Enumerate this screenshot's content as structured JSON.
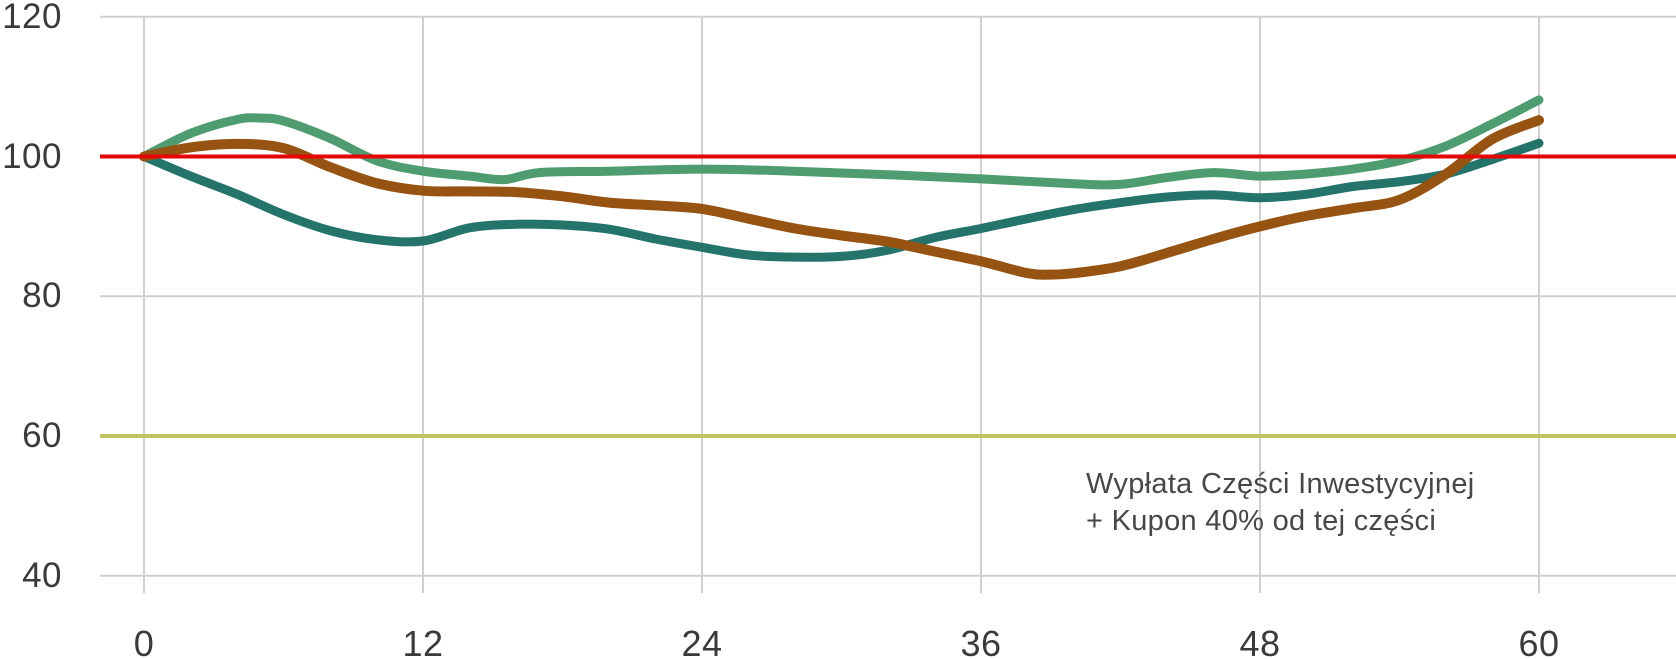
{
  "chart_data": {
    "type": "line",
    "title": "",
    "xlabel": "",
    "ylabel": "",
    "grid": true,
    "legend": "none",
    "x_axis": {
      "tick_labels": [
        "0",
        "12",
        "24",
        "36",
        "48",
        "60"
      ],
      "tick_values": [
        0,
        12,
        24,
        36,
        48,
        60
      ],
      "range_shown": [
        0,
        66
      ]
    },
    "y_axis": {
      "tick_labels": [
        "120",
        "100",
        "80",
        "60",
        "40"
      ],
      "tick_values": [
        120,
        100,
        80,
        60,
        40
      ],
      "plain_grid_values": [
        120,
        80,
        40
      ],
      "range_shown": [
        33,
        122
      ]
    },
    "reference_lines": [
      {
        "name": "level-100",
        "value": 100,
        "color": "#e60505",
        "width": 4
      },
      {
        "name": "level-60",
        "value": 60,
        "color": "#c1c45f",
        "width": 4
      }
    ],
    "annotation": {
      "line1": "Wypłata Części Inwestycyjnej",
      "line2": "+ Kupon 40% od tej części"
    },
    "series": [
      {
        "name": "series-green",
        "color": "#4f9c70",
        "width": 9,
        "points": [
          [
            0,
            100
          ],
          [
            2,
            103.3
          ],
          [
            4,
            105.3
          ],
          [
            5,
            105.5
          ],
          [
            6,
            105.1
          ],
          [
            8,
            102.6
          ],
          [
            10,
            99.4
          ],
          [
            12,
            97.9
          ],
          [
            14,
            97.2
          ],
          [
            15.5,
            96.7
          ],
          [
            17,
            97.7
          ],
          [
            20,
            97.9
          ],
          [
            24,
            98.2
          ],
          [
            28,
            97.9
          ],
          [
            32,
            97.4
          ],
          [
            36,
            96.8
          ],
          [
            40,
            96.1
          ],
          [
            42,
            96.0
          ],
          [
            44,
            97.0
          ],
          [
            46,
            97.7
          ],
          [
            48,
            97.2
          ],
          [
            50,
            97.5
          ],
          [
            52,
            98.2
          ],
          [
            54,
            99.4
          ],
          [
            56,
            101.5
          ],
          [
            58,
            104.7
          ],
          [
            60,
            108.1
          ]
        ]
      },
      {
        "name": "series-teal",
        "color": "#24746c",
        "width": 9,
        "points": [
          [
            0,
            100
          ],
          [
            2,
            97.2
          ],
          [
            4,
            94.6
          ],
          [
            6,
            91.7
          ],
          [
            8,
            89.4
          ],
          [
            10,
            88.1
          ],
          [
            12,
            87.9
          ],
          [
            14,
            89.8
          ],
          [
            16,
            90.3
          ],
          [
            18,
            90.2
          ],
          [
            20,
            89.6
          ],
          [
            22,
            88.2
          ],
          [
            24,
            87.0
          ],
          [
            26,
            85.9
          ],
          [
            28,
            85.6
          ],
          [
            30,
            85.7
          ],
          [
            32,
            86.6
          ],
          [
            34,
            88.4
          ],
          [
            36,
            89.7
          ],
          [
            38,
            91.1
          ],
          [
            40,
            92.4
          ],
          [
            42,
            93.4
          ],
          [
            44,
            94.2
          ],
          [
            46,
            94.5
          ],
          [
            48,
            94.1
          ],
          [
            50,
            94.6
          ],
          [
            52,
            95.7
          ],
          [
            54,
            96.4
          ],
          [
            56,
            97.5
          ],
          [
            58,
            99.6
          ],
          [
            60,
            101.9
          ]
        ]
      },
      {
        "name": "series-brown",
        "color": "#965312",
        "width": 10,
        "points": [
          [
            0,
            100
          ],
          [
            2,
            101.3
          ],
          [
            4,
            101.8
          ],
          [
            6,
            101.2
          ],
          [
            8,
            98.5
          ],
          [
            10,
            96.2
          ],
          [
            12,
            95.1
          ],
          [
            14,
            95.0
          ],
          [
            16,
            94.9
          ],
          [
            18,
            94.3
          ],
          [
            20,
            93.4
          ],
          [
            22,
            93.0
          ],
          [
            24,
            92.5
          ],
          [
            26,
            91.1
          ],
          [
            28,
            89.7
          ],
          [
            30,
            88.7
          ],
          [
            32,
            87.8
          ],
          [
            34,
            86.4
          ],
          [
            36,
            85.0
          ],
          [
            38,
            83.3
          ],
          [
            39,
            83.1
          ],
          [
            40,
            83.3
          ],
          [
            42,
            84.3
          ],
          [
            44,
            86.2
          ],
          [
            46,
            88.2
          ],
          [
            48,
            90.0
          ],
          [
            50,
            91.5
          ],
          [
            52,
            92.6
          ],
          [
            54,
            93.8
          ],
          [
            56,
            97.5
          ],
          [
            58,
            102.5
          ],
          [
            60,
            105.2
          ]
        ]
      }
    ]
  },
  "styles": {
    "grid_color": "#cfcfcf",
    "tick_text_color": "#3a3a3a",
    "annotation_color": "#474747",
    "background": "#ffffff"
  }
}
